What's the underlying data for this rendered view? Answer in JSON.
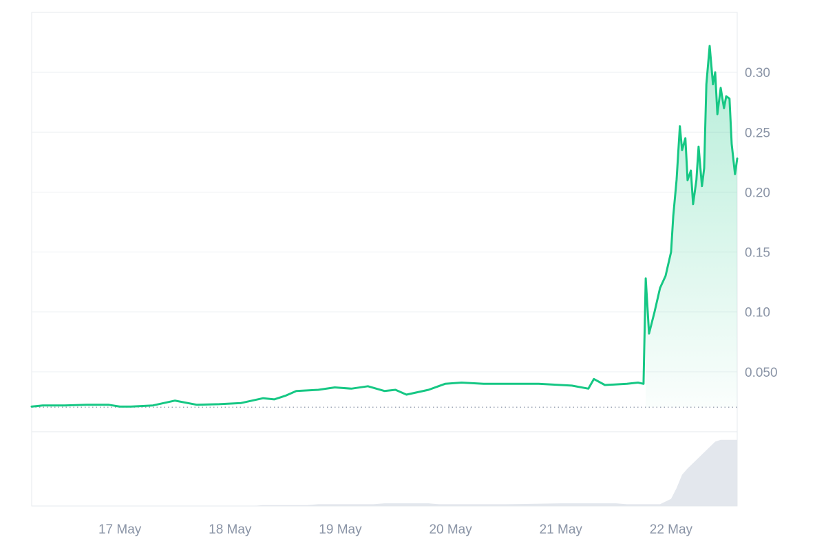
{
  "colors": {
    "line": "#16c784",
    "area_top": "#16c784",
    "grid": "#eef0f3",
    "axis_text": "#8a94a6",
    "baseline": "#8a94a6",
    "volume": "#e3e7ed",
    "border": "#e6e9ee"
  },
  "chart_data": [
    {
      "type": "area",
      "x_tick_labels": [
        "17 May",
        "18 May",
        "19 May",
        "20 May",
        "21 May",
        "22 May"
      ],
      "y_tick_labels": [
        "0.050",
        "0.10",
        "0.15",
        "0.20",
        "0.25",
        "0.30"
      ],
      "y_ticks": [
        0.05,
        0.1,
        0.15,
        0.2,
        0.25,
        0.3
      ],
      "ylim": [
        0,
        0.35
      ],
      "xlim": [
        16.2,
        22.6
      ],
      "grid": true,
      "baseline_value": 0.0205,
      "series": [
        {
          "x": [
            16.2,
            16.3,
            16.5,
            16.7,
            16.9,
            17.0,
            17.1,
            17.3,
            17.5,
            17.7,
            17.9,
            18.1,
            18.3,
            18.4,
            18.5,
            18.6,
            18.8,
            18.95,
            19.1,
            19.25,
            19.4,
            19.5,
            19.6,
            19.8,
            19.95,
            20.1,
            20.3,
            20.5,
            20.8,
            21.1,
            21.25,
            21.3,
            21.4,
            21.6,
            21.7,
            21.75,
            21.77,
            21.8,
            21.85,
            21.9,
            21.95,
            22.0,
            22.02,
            22.05,
            22.08,
            22.1,
            22.13,
            22.15,
            22.18,
            22.2,
            22.23,
            22.25,
            22.28,
            22.3,
            22.32,
            22.35,
            22.38,
            22.4,
            22.42,
            22.45,
            22.48,
            22.5,
            22.53,
            22.55,
            22.58,
            22.6
          ],
          "y": [
            0.021,
            0.022,
            0.022,
            0.0225,
            0.0225,
            0.021,
            0.021,
            0.022,
            0.026,
            0.0225,
            0.023,
            0.024,
            0.028,
            0.027,
            0.03,
            0.034,
            0.035,
            0.037,
            0.036,
            0.038,
            0.034,
            0.035,
            0.031,
            0.035,
            0.04,
            0.041,
            0.04,
            0.04,
            0.04,
            0.0385,
            0.036,
            0.044,
            0.039,
            0.04,
            0.041,
            0.04,
            0.128,
            0.082,
            0.1,
            0.12,
            0.13,
            0.15,
            0.18,
            0.21,
            0.255,
            0.235,
            0.245,
            0.21,
            0.218,
            0.19,
            0.21,
            0.238,
            0.205,
            0.22,
            0.29,
            0.322,
            0.29,
            0.3,
            0.265,
            0.287,
            0.27,
            0.28,
            0.278,
            0.24,
            0.215,
            0.228
          ]
        }
      ],
      "volume": {
        "x": [
          16.2,
          18.2,
          18.3,
          18.7,
          18.8,
          19.3,
          19.4,
          19.8,
          19.9,
          20.35,
          20.5,
          21.0,
          21.1,
          21.5,
          21.6,
          21.9,
          22.0,
          22.05,
          22.1,
          22.15,
          22.2,
          22.3,
          22.4,
          22.45,
          22.6
        ],
        "values": [
          0,
          0,
          1,
          1,
          2,
          2,
          3,
          3,
          2,
          2,
          2,
          3,
          3,
          3,
          2,
          2,
          8,
          20,
          35,
          42,
          48,
          60,
          72,
          74,
          74
        ]
      }
    }
  ]
}
